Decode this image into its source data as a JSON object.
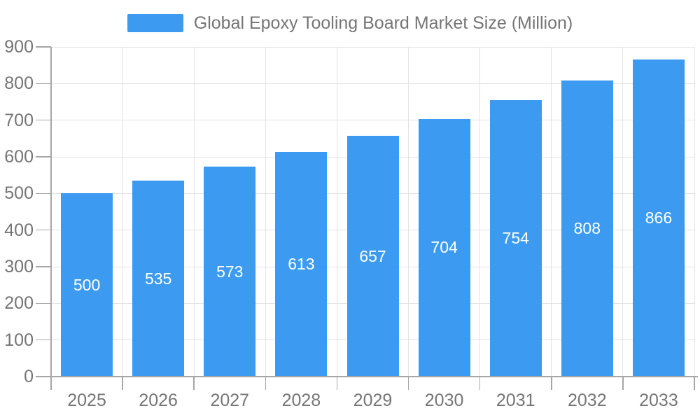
{
  "chart_data": {
    "type": "bar",
    "title": "Global Epoxy Tooling Board Market Size (Million)",
    "categories": [
      "2025",
      "2026",
      "2027",
      "2028",
      "2029",
      "2030",
      "2031",
      "2032",
      "2033"
    ],
    "values": [
      500,
      535,
      573,
      613,
      657,
      704,
      754,
      808,
      866
    ],
    "series": [
      {
        "name": "Global Epoxy Tooling Board Market Size (Million)",
        "values": [
          500,
          535,
          573,
          613,
          657,
          704,
          754,
          808,
          866
        ]
      }
    ],
    "xlabel": "",
    "ylabel": "",
    "ylim": [
      0,
      900
    ],
    "ytick_step": 100,
    "y_tick_labels": [
      "0",
      "100",
      "200",
      "300",
      "400",
      "500",
      "600",
      "700",
      "800",
      "900"
    ],
    "grid": true,
    "bar_labels_visible": true,
    "legend": {
      "position": "top",
      "items": [
        {
          "label": "Global Epoxy Tooling Board Market Size (Million)",
          "color": "#3c9bf0"
        }
      ]
    }
  },
  "colors": {
    "bar": "#3c9bf0",
    "axis_line": "#a6a6a6",
    "gridline": "#e3e3e3",
    "axis_text": "#757575",
    "value_label_text": "#ffffff",
    "legend_text": "#757575",
    "background": "#ffffff"
  }
}
